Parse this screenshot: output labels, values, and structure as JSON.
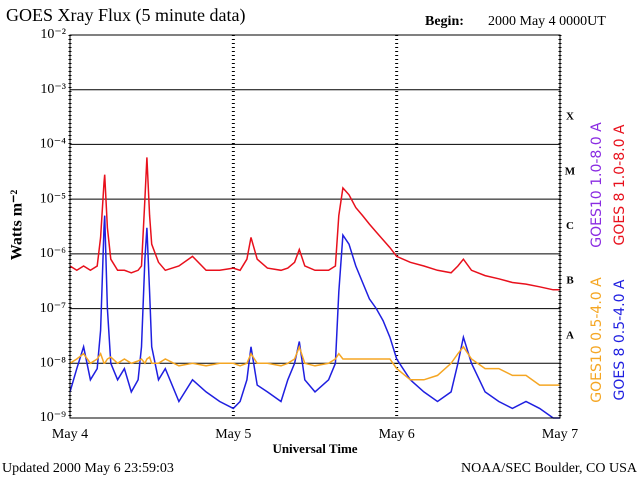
{
  "chart_data": {
    "type": "line",
    "title": "GOES Xray Flux (5 minute data)",
    "begin_label": "Begin:",
    "begin": "2000 May 4 0000UT",
    "ylabel": "Watts m⁻²",
    "xlabel": "Universal Time",
    "updated": "Updated 2000 May  6 23:59:03",
    "source": "NOAA/SEC Boulder, CO USA",
    "log_y": true,
    "grid": true,
    "xlim": [
      0,
      72
    ],
    "xticks": [
      {
        "value": 0,
        "label": "May 4"
      },
      {
        "value": 24,
        "label": "May 5"
      },
      {
        "value": 48,
        "label": "May 6"
      },
      {
        "value": 72,
        "label": "May 7"
      }
    ],
    "ylim": [
      1e-09,
      0.01
    ],
    "yticks": [
      {
        "value": 1e-09,
        "label": "10⁻⁹"
      },
      {
        "value": 1e-08,
        "label": "10⁻⁸"
      },
      {
        "value": 1e-07,
        "label": "10⁻⁷"
      },
      {
        "value": 1e-06,
        "label": "10⁻⁶"
      },
      {
        "value": 1e-05,
        "label": "10⁻⁵"
      },
      {
        "value": 0.0001,
        "label": "10⁻⁴"
      },
      {
        "value": 0.001,
        "label": "10⁻³"
      },
      {
        "value": 0.01,
        "label": "10⁻²"
      }
    ],
    "flare_classes": [
      {
        "value": 0.0001,
        "label": "X"
      },
      {
        "value": 1e-05,
        "label": "M"
      },
      {
        "value": 1e-06,
        "label": "C"
      },
      {
        "value": 1e-07,
        "label": "B"
      },
      {
        "value": 1e-08,
        "label": "A"
      }
    ],
    "series": [
      {
        "name": "GOES10 1.0-8.0 A",
        "color": "#8a2be2",
        "x": [],
        "values": []
      },
      {
        "name": "GOES 8 1.0-8.0 A",
        "color": "#e8101c",
        "x": [
          0,
          1,
          2,
          3,
          4,
          4.5,
          5,
          5.1,
          5.5,
          6,
          7,
          8,
          9,
          10,
          10.5,
          11,
          11.3,
          11.7,
          12,
          13,
          14,
          16,
          18,
          20,
          22,
          24,
          25,
          26,
          26.6,
          27.5,
          29,
          31,
          32,
          33,
          33.7,
          34.5,
          36,
          38,
          39,
          39.5,
          40.1,
          41,
          42,
          43,
          44,
          45,
          46,
          47,
          48,
          50,
          52,
          54,
          56,
          57,
          57.8,
          59,
          61,
          63,
          65,
          67,
          69,
          71,
          72
        ],
        "values": [
          6e-07,
          5e-07,
          6e-07,
          5e-07,
          6e-07,
          2e-06,
          2e-05,
          2.8e-05,
          3e-06,
          8e-07,
          5e-07,
          5e-07,
          4.5e-07,
          5e-07,
          6e-07,
          1e-05,
          5.8e-05,
          5e-06,
          1.5e-06,
          7e-07,
          5e-07,
          6e-07,
          9e-07,
          5e-07,
          5e-07,
          5.5e-07,
          5e-07,
          8e-07,
          2e-06,
          8e-07,
          5.5e-07,
          5e-07,
          5.5e-07,
          7e-07,
          1.2e-06,
          6e-07,
          5e-07,
          5e-07,
          6e-07,
          5e-06,
          1.6e-05,
          1.2e-05,
          7e-06,
          5e-06,
          3.5e-06,
          2.5e-06,
          1.8e-06,
          1.3e-06,
          9e-07,
          7e-07,
          6e-07,
          5e-07,
          4.5e-07,
          6e-07,
          8e-07,
          5e-07,
          4e-07,
          3.5e-07,
          3e-07,
          2.8e-07,
          2.5e-07,
          2.2e-07,
          2.2e-07
        ]
      },
      {
        "name": "GOES10 0.5-4.0 A",
        "color": "#f5a623",
        "x": [
          0,
          1,
          2,
          3,
          4,
          4.5,
          5,
          5.1,
          5.5,
          6,
          7,
          8,
          9,
          10,
          10.5,
          11,
          11.3,
          11.7,
          12,
          13,
          14,
          16,
          18,
          20,
          22,
          24,
          25,
          26,
          26.6,
          27.5,
          29,
          31,
          32,
          33,
          33.7,
          34.5,
          36,
          38,
          39,
          39.5,
          40.1,
          41,
          42,
          43,
          44,
          45,
          46,
          47,
          48,
          50,
          52,
          54,
          56,
          57,
          57.8,
          59,
          61,
          63,
          65,
          67,
          69,
          71,
          72
        ],
        "values": [
          1e-08,
          1.2e-08,
          1.5e-08,
          1e-08,
          1.2e-08,
          1.5e-08,
          1e-08,
          1e-08,
          1.2e-08,
          1.3e-08,
          1e-08,
          1.2e-08,
          1e-08,
          1.1e-08,
          1.2e-08,
          1e-08,
          1.2e-08,
          1.3e-08,
          1e-08,
          1e-08,
          1.2e-08,
          9e-09,
          1e-08,
          9e-09,
          1e-08,
          1e-08,
          9e-09,
          1e-08,
          1.5e-08,
          1e-08,
          1e-08,
          9e-09,
          1e-08,
          1.2e-08,
          2e-08,
          1e-08,
          9e-09,
          1e-08,
          1.2e-08,
          1.5e-08,
          1.2e-08,
          1.2e-08,
          1.2e-08,
          1.2e-08,
          1.2e-08,
          1.2e-08,
          1.2e-08,
          1.2e-08,
          8e-09,
          5e-09,
          5e-09,
          6e-09,
          1e-08,
          1.5e-08,
          2e-08,
          1.2e-08,
          8e-09,
          8e-09,
          6e-09,
          6e-09,
          4e-09,
          4e-09,
          4e-09
        ]
      },
      {
        "name": "GOES 8 0.5-4.0 A",
        "color": "#1f1fe0",
        "x": [
          0,
          1,
          2,
          3,
          4,
          4.5,
          5,
          5.1,
          5.5,
          6,
          7,
          8,
          9,
          10,
          10.5,
          11,
          11.3,
          11.7,
          12,
          13,
          14,
          16,
          18,
          20,
          22,
          24,
          25,
          26,
          26.6,
          27.5,
          29,
          31,
          32,
          33,
          33.7,
          34.5,
          36,
          38,
          39,
          39.5,
          40.1,
          41,
          42,
          43,
          44,
          45,
          46,
          47,
          48,
          50,
          52,
          54,
          56,
          57,
          57.8,
          59,
          61,
          63,
          65,
          67,
          69,
          71,
          72
        ],
        "values": [
          3e-09,
          8e-09,
          2e-08,
          5e-09,
          8e-09,
          4e-08,
          3e-06,
          5e-06,
          1e-07,
          1e-08,
          5e-09,
          8e-09,
          3e-09,
          5e-09,
          2e-08,
          8e-07,
          3e-06,
          2e-07,
          2e-08,
          5e-09,
          8e-09,
          2e-09,
          5e-09,
          3e-09,
          2e-09,
          1.5e-09,
          2e-09,
          5e-09,
          2e-08,
          4e-09,
          3e-09,
          2e-09,
          5e-09,
          1e-08,
          2.5e-08,
          5e-09,
          3e-09,
          5e-09,
          1e-08,
          2e-07,
          2.2e-06,
          1.5e-06,
          6e-07,
          3e-07,
          1.5e-07,
          1e-07,
          6e-08,
          3e-08,
          1.2e-08,
          5e-09,
          3e-09,
          2e-09,
          3e-09,
          1e-08,
          3e-08,
          1e-08,
          3e-09,
          2e-09,
          1.5e-09,
          2e-09,
          1.5e-09,
          1e-09,
          1e-09
        ]
      }
    ]
  }
}
